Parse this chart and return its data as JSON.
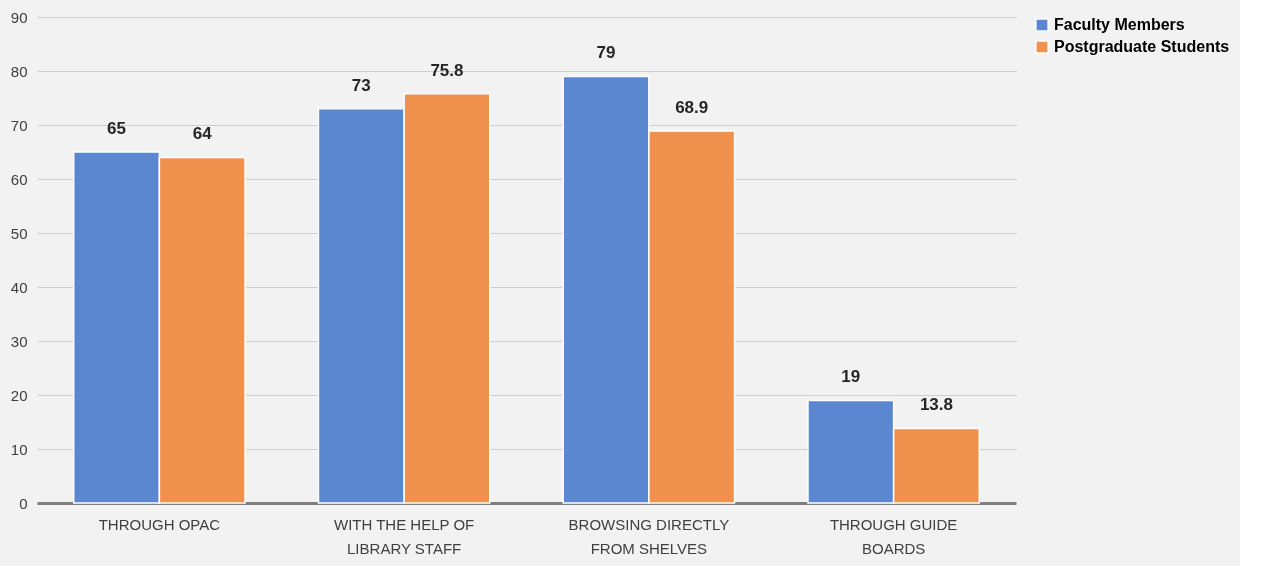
{
  "chart_data": {
    "type": "bar",
    "categories": [
      "THROUGH OPAC",
      "WITH THE HELP OF LIBRARY STAFF",
      "BROWSING DIRECTLY FROM SHELVES",
      "THROUGH GUIDE BOARDS"
    ],
    "series": [
      {
        "name": "Faculty Members",
        "color": "#5b87d0",
        "values": [
          65,
          73,
          79,
          19
        ]
      },
      {
        "name": "Postgraduate Students",
        "color": "#f0914e",
        "values": [
          64,
          75.8,
          68.9,
          13.8
        ]
      }
    ],
    "ylim": [
      0,
      90
    ],
    "yticks": [
      0,
      10,
      20,
      30,
      40,
      50,
      60,
      70,
      80,
      90
    ],
    "grid": "y",
    "legend": "right",
    "data_labels": true
  }
}
